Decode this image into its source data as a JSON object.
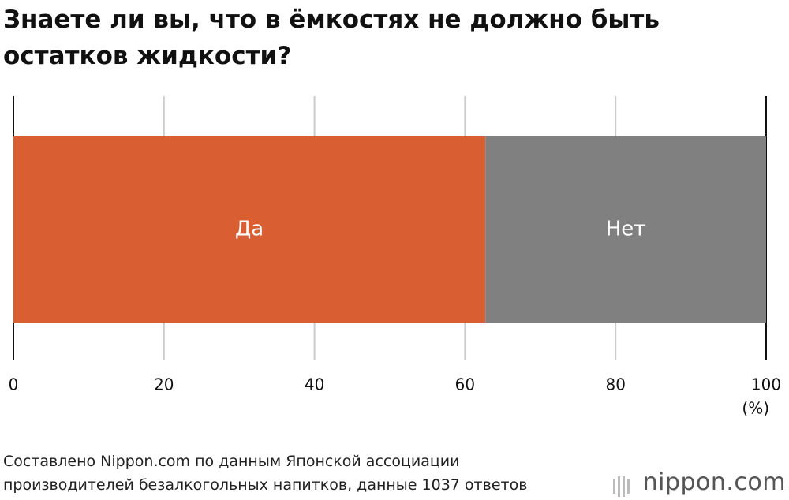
{
  "chart_data": {
    "type": "stacked-bar-horizontal",
    "title": "Знаете ли вы, что в ёмкостях не должно быть остатков жидкости?",
    "categories": [
      null
    ],
    "series": [
      {
        "name": "Да",
        "color": "#d95f33",
        "values": [
          62.7
        ]
      },
      {
        "name": "Нет",
        "color": "#808080",
        "values": [
          37.3
        ]
      }
    ],
    "xlim": [
      0,
      100
    ],
    "xticks": [
      0,
      20,
      40,
      60,
      80,
      100
    ],
    "x_unit": "(%)",
    "grid": true,
    "source": "Составлено Nippon.com по данным Японской ассоциации производителей безалкогольных напитков, данные 1037 ответов",
    "logo": "nippon.com"
  }
}
